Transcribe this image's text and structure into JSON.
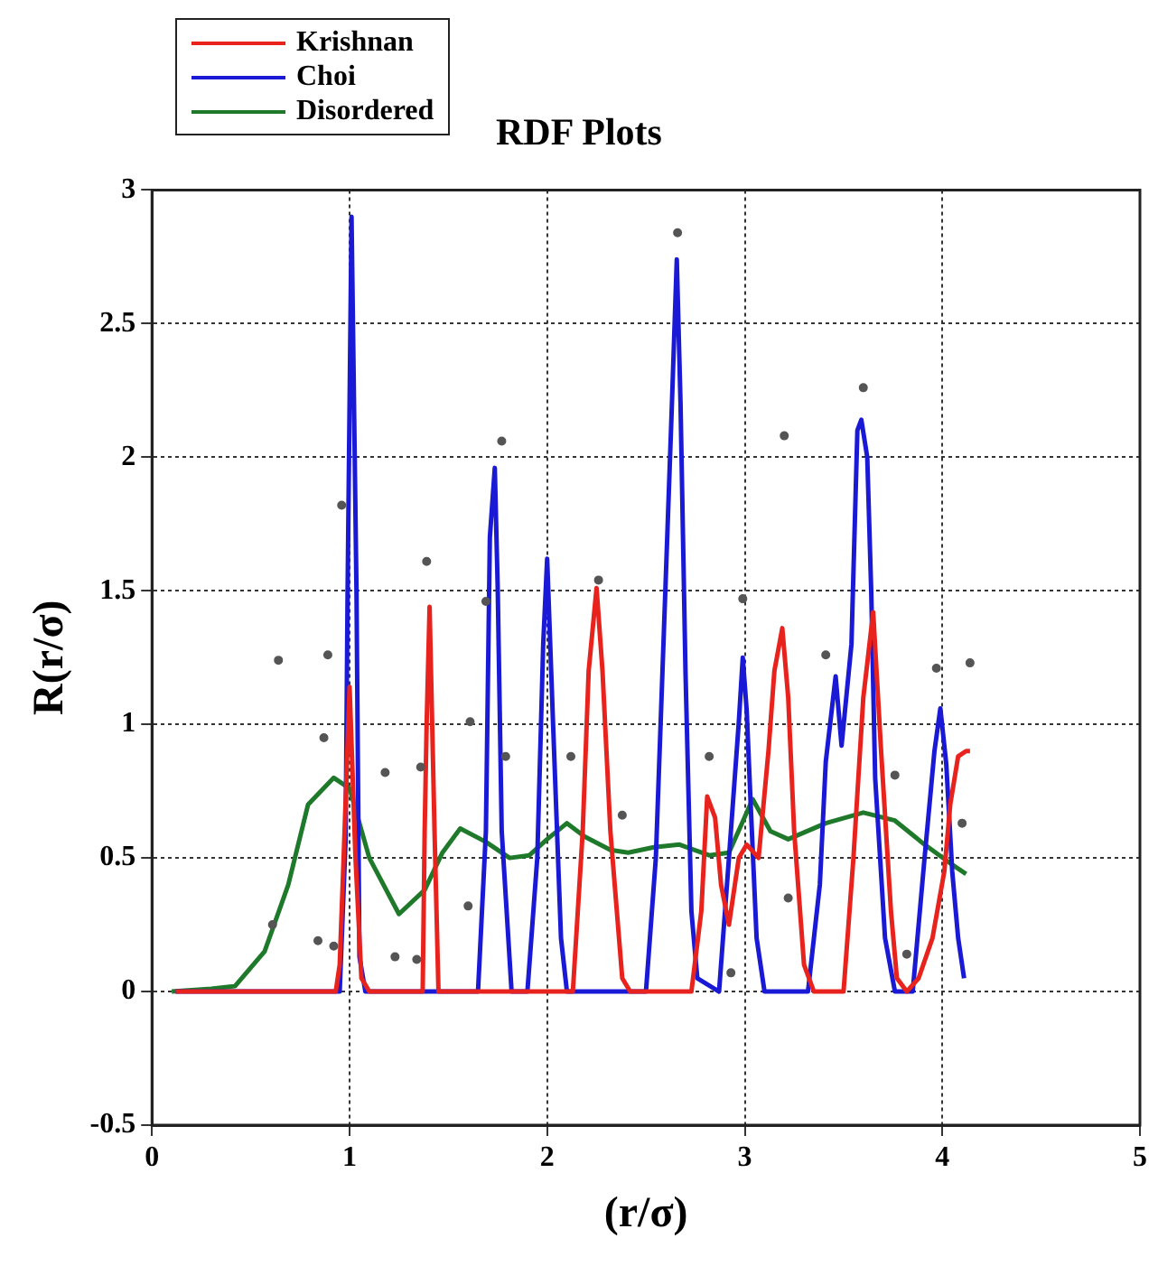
{
  "chart_data": {
    "type": "line",
    "title": "RDF Plots",
    "xlabel": "(r/σ)",
    "ylabel": "R(r/σ)",
    "xlim": [
      0,
      5
    ],
    "xticks": [
      0,
      1,
      2,
      3,
      4,
      5
    ],
    "ylim": [
      -0.5,
      3
    ],
    "yticks": [
      -0.5,
      0,
      0.5,
      1,
      1.5,
      2,
      2.5,
      3
    ],
    "grid": true,
    "legend": "top left",
    "marker": "none",
    "line_style": "solid",
    "series": [
      {
        "name": "Krishnan",
        "color": "#e8231e",
        "x": [
          0.12,
          0.93,
          0.95,
          0.97,
          1.0,
          1.03,
          1.06,
          1.1,
          1.37,
          1.38,
          1.39,
          1.405,
          1.43,
          1.45,
          2.13,
          2.18,
          2.21,
          2.25,
          2.28,
          2.32,
          2.38,
          2.42,
          2.73,
          2.78,
          2.81,
          2.85,
          2.88,
          2.92,
          2.97,
          3.01,
          3.07,
          3.12,
          3.15,
          3.19,
          3.22,
          3.25,
          3.3,
          3.35,
          3.5,
          3.55,
          3.6,
          3.65,
          3.69,
          3.74,
          3.77,
          3.82,
          3.88,
          3.95,
          4.01,
          4.04,
          4.08,
          4.12,
          4.14
        ],
        "values": [
          0,
          0,
          0.1,
          0.5,
          1.14,
          0.5,
          0.05,
          0,
          0,
          0.6,
          1.0,
          1.44,
          0.6,
          0,
          0,
          0.6,
          1.2,
          1.51,
          1.2,
          0.6,
          0.05,
          0,
          0,
          0.3,
          0.73,
          0.65,
          0.4,
          0.25,
          0.5,
          0.55,
          0.5,
          0.9,
          1.2,
          1.36,
          1.1,
          0.6,
          0.1,
          0,
          0,
          0.5,
          1.1,
          1.42,
          0.9,
          0.3,
          0.05,
          0,
          0.05,
          0.2,
          0.45,
          0.7,
          0.88,
          0.9,
          0.9
        ]
      },
      {
        "name": "Choi",
        "color": "#1a1ad6",
        "x": [
          0.12,
          0.95,
          0.98,
          0.99,
          1.01,
          1.035,
          1.05,
          1.08,
          1.65,
          1.69,
          1.71,
          1.735,
          1.75,
          1.77,
          1.82,
          1.9,
          1.95,
          1.98,
          2.0,
          2.03,
          2.07,
          2.1,
          2.5,
          2.55,
          2.6,
          2.63,
          2.656,
          2.675,
          2.7,
          2.73,
          2.76,
          2.87,
          2.92,
          2.97,
          2.99,
          3.01,
          3.03,
          3.06,
          3.1,
          3.32,
          3.38,
          3.41,
          3.46,
          3.49,
          3.54,
          3.57,
          3.59,
          3.62,
          3.64,
          3.66,
          3.71,
          3.76,
          3.85,
          3.91,
          3.96,
          3.99,
          4.02,
          4.05,
          4.08,
          4.11
        ],
        "values": [
          0,
          0,
          0.57,
          1.5,
          2.9,
          1.5,
          0.13,
          0,
          0,
          0.6,
          1.7,
          1.96,
          1.5,
          0.6,
          0,
          0,
          0.5,
          1.3,
          1.62,
          1.0,
          0.2,
          0,
          0,
          0.5,
          1.54,
          2.17,
          2.74,
          2.2,
          1.2,
          0.3,
          0.05,
          0,
          0.5,
          1.01,
          1.25,
          1.05,
          0.7,
          0.2,
          0,
          0,
          0.4,
          0.86,
          1.18,
          0.92,
          1.3,
          2.1,
          2.14,
          2.0,
          1.5,
          0.8,
          0.2,
          0,
          0,
          0.5,
          0.9,
          1.06,
          0.85,
          0.45,
          0.2,
          0.05
        ]
      },
      {
        "name": "Disordered",
        "color": "#1e7a2a",
        "x": [
          0.1,
          0.3,
          0.42,
          0.57,
          0.69,
          0.79,
          0.92,
          1.0,
          1.1,
          1.25,
          1.38,
          1.47,
          1.56,
          1.69,
          1.81,
          1.91,
          2.0,
          2.1,
          2.19,
          2.32,
          2.41,
          2.54,
          2.67,
          2.82,
          2.92,
          3.04,
          3.13,
          3.22,
          3.41,
          3.6,
          3.76,
          3.91,
          4.04,
          4.12
        ],
        "values": [
          0,
          0.01,
          0.02,
          0.15,
          0.4,
          0.7,
          0.8,
          0.76,
          0.5,
          0.29,
          0.38,
          0.52,
          0.61,
          0.56,
          0.5,
          0.51,
          0.57,
          0.63,
          0.58,
          0.53,
          0.52,
          0.54,
          0.55,
          0.51,
          0.52,
          0.72,
          0.6,
          0.57,
          0.63,
          0.67,
          0.64,
          0.55,
          0.48,
          0.44
        ]
      },
      {
        "type": "scatter",
        "marker": "circle",
        "color": "#555555",
        "x": [
          0.64,
          0.96,
          0.89,
          1.39,
          1.77,
          1.69,
          2.26,
          1.61,
          0.87,
          1.36,
          1.18,
          1.23,
          1.34,
          0.84,
          0.92,
          0.61,
          1.6,
          1.79,
          2.12,
          2.38,
          2.66,
          3.2,
          3.6,
          2.99,
          3.41,
          4.14,
          3.97,
          2.82,
          3.76,
          4.1,
          3.22,
          2.93,
          3.82
        ],
        "values": [
          1.24,
          1.82,
          1.26,
          1.61,
          2.06,
          1.46,
          1.54,
          1.01,
          0.95,
          0.84,
          0.82,
          0.13,
          0.12,
          0.19,
          0.17,
          0.25,
          0.32,
          0.88,
          0.88,
          0.66,
          2.84,
          2.08,
          2.26,
          1.47,
          1.26,
          1.23,
          1.21,
          0.88,
          0.81,
          0.63,
          0.35,
          0.07,
          0.14
        ]
      }
    ]
  }
}
